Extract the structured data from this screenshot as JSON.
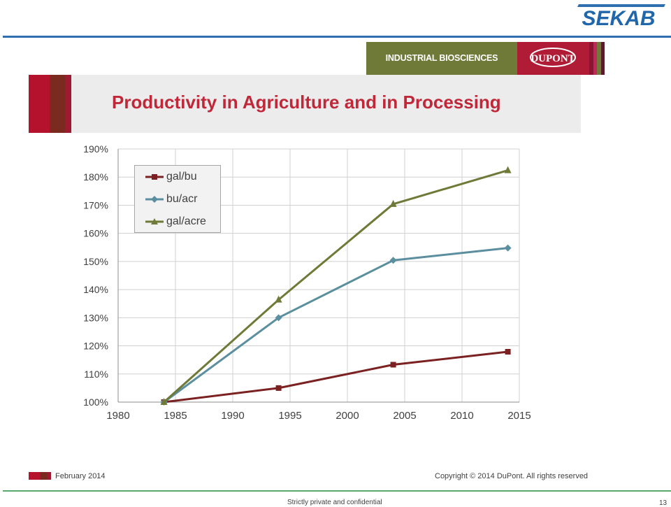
{
  "header": {
    "logo_text": "SEKAB",
    "banner_text": "INDUSTRIAL BIOSCIENCES",
    "banner_logo_text": "DUPONT",
    "colors": {
      "blue": "#2f6fb0",
      "green": "#6f7a38",
      "red": "#b01c35"
    }
  },
  "slide": {
    "title": "Productivity in Agriculture and in Processing"
  },
  "chart_data": {
    "type": "line",
    "title": "",
    "xlabel": "",
    "ylabel": "",
    "x_ticks": [
      1980,
      1985,
      1990,
      1995,
      2000,
      2005,
      2010,
      2015
    ],
    "y_ticks": [
      "100%",
      "110%",
      "120%",
      "130%",
      "140%",
      "150%",
      "160%",
      "170%",
      "180%",
      "190%"
    ],
    "xlim": [
      1980,
      2015
    ],
    "ylim": [
      100,
      190
    ],
    "grid": true,
    "legend_position": "top-left",
    "series": [
      {
        "name": "gal/bu",
        "color": "#7b2121",
        "marker": "square",
        "x": [
          1984,
          1994,
          2004,
          2014
        ],
        "values": [
          100,
          105,
          113.3,
          117.9
        ]
      },
      {
        "name": "bu/acr",
        "color": "#5b8fa0",
        "marker": "diamond",
        "x": [
          1984,
          1994,
          2004,
          2014
        ],
        "values": [
          100,
          130,
          150.4,
          154.8
        ]
      },
      {
        "name": "gal/acre",
        "color": "#6f7a38",
        "marker": "triangle",
        "x": [
          1984,
          1994,
          2004,
          2014
        ],
        "values": [
          100,
          136.4,
          170.4,
          182.4
        ]
      }
    ]
  },
  "footer": {
    "date": "February 2014",
    "copyright": "Copyright © 2014 DuPont.  All rights reserved",
    "confidential": "Strictly private and confidential",
    "page_number": "13"
  }
}
